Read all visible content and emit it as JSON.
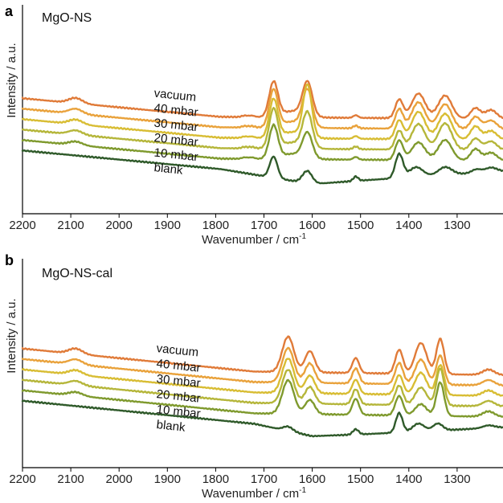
{
  "chart_data": [
    {
      "panel": "a",
      "type": "line",
      "title": "MgO-NS",
      "xlabel": "Wavenumber / cm",
      "xlabel_sup": "-1",
      "ylabel": "Intensity / a.u.",
      "xlim": [
        2200,
        1205
      ],
      "x_reversed": true,
      "x_ticks": [
        2200,
        2100,
        2000,
        1900,
        1800,
        1700,
        1600,
        1500,
        1400,
        1300
      ],
      "y_ticks": [],
      "curves_stacked": true,
      "series": [
        {
          "name": "vacuum",
          "color": "#e07b39",
          "offset": 5,
          "baseline": [
            [
              2200,
              1.85
            ],
            [
              1790,
              0.8
            ],
            [
              1205,
              0.68
            ]
          ],
          "features": [
            [
              2090,
              0.3,
              14
            ],
            [
              1740,
              0.08,
              6
            ],
            [
              1725,
              0.08,
              6
            ],
            [
              1680,
              1.95,
              9
            ],
            [
              1640,
              0.35,
              25
            ],
            [
              1610,
              1.9,
              10
            ],
            [
              1510,
              0.15,
              5
            ],
            [
              1420,
              1.05,
              8
            ],
            [
              1380,
              1.4,
              14
            ],
            [
              1325,
              1.3,
              14
            ],
            [
              1262,
              0.6,
              10
            ],
            [
              1230,
              0.5,
              12
            ]
          ]
        },
        {
          "name": "40 mbar",
          "color": "#e9a23b",
          "offset": 4,
          "baseline": [
            [
              2200,
              1.85
            ],
            [
              1790,
              0.8
            ],
            [
              1205,
              0.68
            ]
          ],
          "features": [
            [
              2090,
              0.28,
              14
            ],
            [
              1740,
              0.08,
              6
            ],
            [
              1725,
              0.08,
              6
            ],
            [
              1680,
              2.1,
              9
            ],
            [
              1640,
              0.35,
              25
            ],
            [
              1610,
              2.05,
              10
            ],
            [
              1510,
              0.15,
              5
            ],
            [
              1420,
              1.1,
              8
            ],
            [
              1380,
              1.5,
              14
            ],
            [
              1325,
              1.4,
              14
            ],
            [
              1262,
              0.7,
              10
            ],
            [
              1230,
              0.5,
              12
            ]
          ]
        },
        {
          "name": "30 mbar",
          "color": "#d8bd34",
          "offset": 3,
          "baseline": [
            [
              2200,
              1.85
            ],
            [
              1790,
              0.8
            ],
            [
              1205,
              0.68
            ]
          ],
          "features": [
            [
              2090,
              0.26,
              14
            ],
            [
              1740,
              0.08,
              6
            ],
            [
              1725,
              0.08,
              6
            ],
            [
              1680,
              2.15,
              9
            ],
            [
              1640,
              0.35,
              25
            ],
            [
              1610,
              2.9,
              9
            ],
            [
              1510,
              0.15,
              5
            ],
            [
              1420,
              1.05,
              8
            ],
            [
              1380,
              1.55,
              14
            ],
            [
              1325,
              1.45,
              14
            ],
            [
              1262,
              0.75,
              10
            ],
            [
              1230,
              0.5,
              12
            ]
          ]
        },
        {
          "name": "20 mbar",
          "color": "#b5b63a",
          "offset": 2,
          "baseline": [
            [
              2200,
              1.85
            ],
            [
              1790,
              0.8
            ],
            [
              1205,
              0.68
            ]
          ],
          "features": [
            [
              2090,
              0.24,
              14
            ],
            [
              1740,
              0.08,
              6
            ],
            [
              1725,
              0.08,
              6
            ],
            [
              1680,
              2.2,
              9
            ],
            [
              1640,
              0.35,
              25
            ],
            [
              1610,
              1.95,
              10
            ],
            [
              1510,
              0.15,
              5
            ],
            [
              1420,
              1.05,
              8
            ],
            [
              1380,
              1.45,
              14
            ],
            [
              1325,
              1.5,
              14
            ],
            [
              1262,
              0.65,
              10
            ],
            [
              1230,
              0.5,
              12
            ]
          ]
        },
        {
          "name": "10 mbar",
          "color": "#7f9a2e",
          "offset": 1,
          "baseline": [
            [
              2200,
              1.85
            ],
            [
              1790,
              0.8
            ],
            [
              1205,
              0.68
            ]
          ],
          "features": [
            [
              2090,
              0.2,
              14
            ],
            [
              1740,
              0.08,
              6
            ],
            [
              1725,
              0.08,
              6
            ],
            [
              1680,
              1.85,
              9
            ],
            [
              1640,
              0.3,
              25
            ],
            [
              1610,
              1.4,
              10
            ],
            [
              1510,
              0.15,
              5
            ],
            [
              1420,
              1.1,
              8
            ],
            [
              1380,
              1.0,
              14
            ],
            [
              1325,
              1.15,
              14
            ],
            [
              1262,
              0.65,
              10
            ],
            [
              1230,
              0.45,
              12
            ]
          ]
        },
        {
          "name": "blank",
          "color": "#2f5a2a",
          "offset": 0,
          "baseline": [
            [
              2200,
              1.85
            ],
            [
              1790,
              0.8
            ],
            [
              1600,
              -0.05
            ],
            [
              1500,
              0.15
            ],
            [
              1205,
              0.68
            ]
          ],
          "features": [
            [
              1680,
              1.2,
              8
            ],
            [
              1610,
              0.7,
              10
            ],
            [
              1510,
              0.25,
              5
            ],
            [
              1420,
              1.35,
              8
            ],
            [
              1385,
              0.55,
              14
            ],
            [
              1325,
              0.45,
              14
            ],
            [
              1260,
              0.2,
              10
            ],
            [
              1230,
              0.25,
              12
            ]
          ]
        }
      ]
    },
    {
      "panel": "b",
      "type": "line",
      "title": "MgO-NS-cal",
      "xlabel": "Wavenumber / cm",
      "xlabel_sup": "-1",
      "ylabel": "Intensity / a.u.",
      "xlim": [
        2200,
        1205
      ],
      "x_reversed": true,
      "x_ticks": [
        2200,
        2100,
        2000,
        1900,
        1800,
        1700,
        1600,
        1500,
        1400,
        1300
      ],
      "y_ticks": [],
      "curves_stacked": true,
      "series": [
        {
          "name": "vacuum",
          "color": "#e07b39",
          "offset": 5,
          "baseline": [
            [
              2200,
              2.1
            ],
            [
              1720,
              0.8
            ],
            [
              1205,
              0.6
            ]
          ],
          "features": [
            [
              2090,
              0.3,
              14
            ],
            [
              1650,
              2.0,
              12
            ],
            [
              1605,
              1.2,
              10
            ],
            [
              1510,
              0.85,
              7
            ],
            [
              1420,
              1.35,
              8
            ],
            [
              1375,
              1.75,
              12
            ],
            [
              1335,
              2.0,
              8
            ],
            [
              1235,
              0.3,
              12
            ]
          ]
        },
        {
          "name": "40 mbar",
          "color": "#e9a23b",
          "offset": 4,
          "baseline": [
            [
              2200,
              2.1
            ],
            [
              1720,
              0.8
            ],
            [
              1205,
              0.6
            ]
          ],
          "features": [
            [
              2090,
              0.28,
              14
            ],
            [
              1650,
              1.95,
              12
            ],
            [
              1605,
              1.1,
              10
            ],
            [
              1510,
              0.85,
              7
            ],
            [
              1420,
              1.2,
              8
            ],
            [
              1375,
              1.4,
              12
            ],
            [
              1335,
              1.65,
              8
            ],
            [
              1235,
              0.3,
              12
            ]
          ]
        },
        {
          "name": "30 mbar",
          "color": "#d8bd34",
          "offset": 3,
          "baseline": [
            [
              2200,
              2.1
            ],
            [
              1720,
              0.8
            ],
            [
              1205,
              0.6
            ]
          ],
          "features": [
            [
              2090,
              0.26,
              14
            ],
            [
              1650,
              1.95,
              12
            ],
            [
              1605,
              1.0,
              10
            ],
            [
              1510,
              0.8,
              7
            ],
            [
              1420,
              1.1,
              8
            ],
            [
              1375,
              1.25,
              12
            ],
            [
              1335,
              1.7,
              8
            ],
            [
              1235,
              0.3,
              12
            ]
          ]
        },
        {
          "name": "20 mbar",
          "color": "#b5b63a",
          "offset": 2,
          "baseline": [
            [
              2200,
              2.1
            ],
            [
              1720,
              0.8
            ],
            [
              1205,
              0.6
            ]
          ],
          "features": [
            [
              2090,
              0.24,
              14
            ],
            [
              1650,
              1.9,
              12
            ],
            [
              1605,
              0.95,
              10
            ],
            [
              1510,
              0.85,
              7
            ],
            [
              1420,
              1.1,
              8
            ],
            [
              1375,
              1.0,
              12
            ],
            [
              1335,
              2.1,
              8
            ],
            [
              1235,
              0.3,
              12
            ]
          ]
        },
        {
          "name": "10 mbar",
          "color": "#7f9a2e",
          "offset": 1,
          "baseline": [
            [
              2200,
              2.1
            ],
            [
              1720,
              0.8
            ],
            [
              1205,
              0.6
            ]
          ],
          "features": [
            [
              2090,
              0.2,
              14
            ],
            [
              1650,
              1.9,
              12
            ],
            [
              1605,
              0.8,
              10
            ],
            [
              1510,
              0.9,
              7
            ],
            [
              1420,
              1.1,
              8
            ],
            [
              1375,
              0.65,
              12
            ],
            [
              1335,
              1.9,
              8
            ],
            [
              1235,
              0.3,
              12
            ]
          ]
        },
        {
          "name": "blank",
          "color": "#2f5a2a",
          "offset": 0,
          "baseline": [
            [
              2200,
              2.1
            ],
            [
              1720,
              0.8
            ],
            [
              1600,
              0.1
            ],
            [
              1500,
              0.2
            ],
            [
              1205,
              0.6
            ]
          ],
          "features": [
            [
              1650,
              0.25,
              10
            ],
            [
              1510,
              0.3,
              6
            ],
            [
              1420,
              1.1,
              7
            ],
            [
              1380,
              0.45,
              12
            ],
            [
              1340,
              0.4,
              10
            ],
            [
              1235,
              0.15,
              12
            ]
          ]
        }
      ]
    }
  ]
}
